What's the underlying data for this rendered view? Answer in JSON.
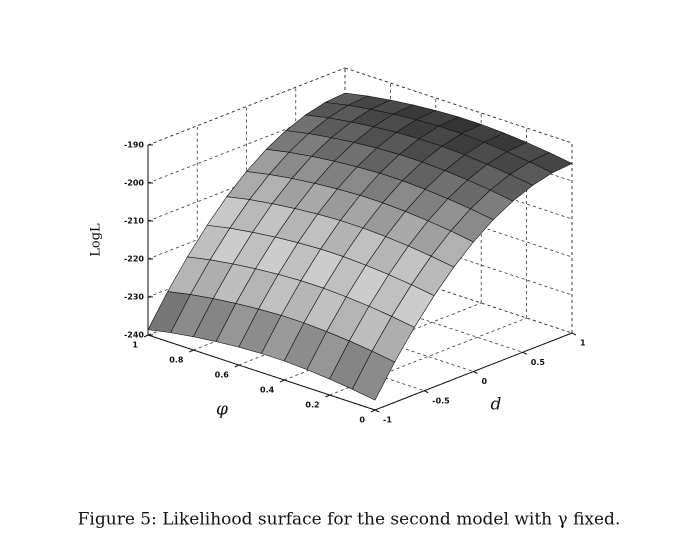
{
  "chart_data": {
    "type": "surface",
    "caption": "Figure 5: Likelihood surface for the second model with γ fixed.",
    "x_label": "φ",
    "y_label": "d",
    "z_label": "LogL",
    "x": [
      0,
      0.1,
      0.2,
      0.3,
      0.4,
      0.5,
      0.6,
      0.7,
      0.8,
      0.9,
      1
    ],
    "y": [
      -1,
      -0.8,
      -0.6,
      -0.4,
      -0.2,
      0,
      0.2,
      0.4,
      0.6,
      0.8,
      1
    ],
    "z": [
      [
        -237.4,
        -229.4,
        -222.3,
        -216,
        -210.5,
        -205.9,
        -202.1,
        -199.2,
        -197.1,
        -195.8,
        -195.4
      ],
      [
        -236.5,
        -228.5,
        -221.4,
        -215.1,
        -209.6,
        -205,
        -201.2,
        -198.3,
        -196.2,
        -194.9,
        -194.5
      ],
      [
        -235.8,
        -227.8,
        -220.7,
        -214.4,
        -208.9,
        -204.3,
        -200.5,
        -197.6,
        -195.5,
        -194.2,
        -193.8
      ],
      [
        -235.3,
        -227.3,
        -220.2,
        -213.9,
        -208.4,
        -203.8,
        -200,
        -197.1,
        -195,
        -193.7,
        -193.3
      ],
      [
        -235,
        -227,
        -219.9,
        -213.6,
        -208.1,
        -203.5,
        -199.7,
        -196.8,
        -194.7,
        -193.4,
        -193
      ],
      [
        -235,
        -227,
        -219.9,
        -213.6,
        -208.1,
        -203.5,
        -199.7,
        -196.8,
        -194.7,
        -193.4,
        -193
      ],
      [
        -235.3,
        -227.3,
        -220.2,
        -213.9,
        -208.4,
        -203.8,
        -200,
        -197.1,
        -195,
        -193.7,
        -193.3
      ],
      [
        -235.8,
        -227.8,
        -220.7,
        -214.4,
        -208.9,
        -204.3,
        -200.5,
        -197.6,
        -195.5,
        -194.2,
        -193.8
      ],
      [
        -236.5,
        -228.5,
        -221.4,
        -215.1,
        -209.6,
        -205,
        -201.2,
        -198.3,
        -196.2,
        -194.9,
        -194.5
      ],
      [
        -237.4,
        -229.4,
        -222.3,
        -216,
        -210.5,
        -205.9,
        -202.1,
        -199.2,
        -197.1,
        -195.8,
        -195.4
      ],
      [
        -238.6,
        -230.6,
        -223.5,
        -217.2,
        -211.7,
        -207.1,
        -203.3,
        -200.4,
        -198.3,
        -197,
        -196.6
      ]
    ],
    "xlim": [
      0,
      1
    ],
    "xticks": [
      0,
      0.2,
      0.4,
      0.6,
      0.8,
      1
    ],
    "ylim": [
      -1,
      1
    ],
    "yticks": [
      -1,
      -0.5,
      0,
      0.5,
      1
    ],
    "zlim": [
      -240,
      -190
    ],
    "zticks": [
      -240,
      -230,
      -220,
      -210,
      -200,
      -190
    ],
    "grid": true,
    "colormap": "gray"
  }
}
